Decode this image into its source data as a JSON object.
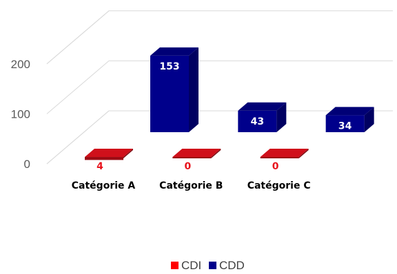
{
  "chart_data": {
    "type": "bar",
    "subtype": "3d-clustered-column",
    "categories": [
      "Catégorie A",
      "Catégorie B",
      "Catégorie C"
    ],
    "series": [
      {
        "name": "CDI",
        "values": [
          4,
          0,
          0
        ],
        "color": "#d0101b"
      },
      {
        "name": "CDD",
        "values": [
          153,
          43,
          34
        ],
        "color": "#00008b"
      }
    ],
    "y_ticks": [
      0,
      100,
      200
    ],
    "ylim": [
      0,
      200
    ],
    "grid": true,
    "legend_position": "bottom",
    "data_labels": {
      "CDI": [
        "4",
        "0",
        "0"
      ],
      "CDD": [
        "153",
        "43",
        "34"
      ]
    }
  }
}
